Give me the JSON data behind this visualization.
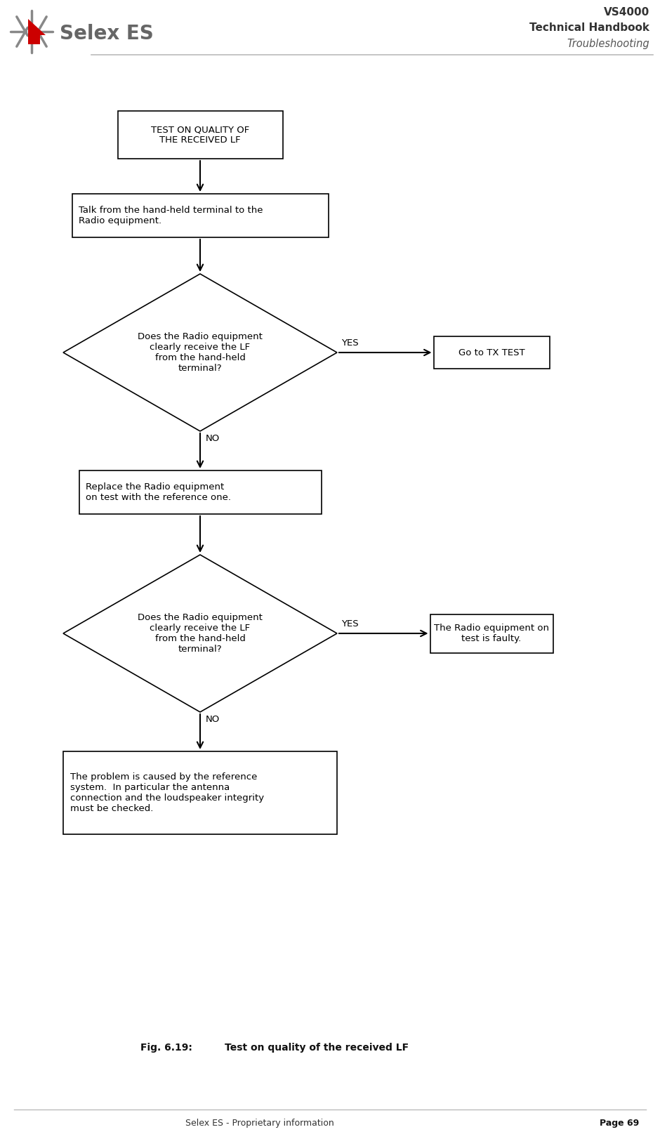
{
  "title_line1": "VS4000",
  "title_line2": "Technical Handbook",
  "title_line3": "Troubleshooting",
  "footer_left": "Selex ES - Proprietary information",
  "footer_right": "Page 69",
  "fig_caption_left": "Fig. 6.19:",
  "fig_caption_right": "Test on quality of the received LF",
  "bg_color": "#ffffff",
  "box_color": "#ffffff",
  "box_edge": "#000000",
  "arrow_color": "#000000",
  "text_color": "#000000",
  "header_line_color": "#bbbbbb",
  "footer_line_color": "#bbbbbb",
  "node_start": "TEST ON QUALITY OF\nTHE RECEIVED LF",
  "node_process1": "Talk from the hand-held terminal to the\nRadio equipment.",
  "node_diamond1": "Does the Radio equipment\nclearly receive the LF\nfrom the hand-held\nterminal?",
  "node_yes1": "Go to TX TEST",
  "node_process2": "Replace the Radio equipment\non test with the reference one.",
  "node_diamond2": "Does the Radio equipment\nclearly receive the LF\nfrom the hand-held\nterminal?",
  "node_yes2": "The Radio equipment on\ntest is faulty.",
  "node_end": "The problem is caused by the reference\nsystem.  In particular the antenna\nconnection and the loudspeaker integrity\nmust be checked.",
  "label_yes": "YES",
  "label_no": "NO",
  "logo_text": "Selex ES",
  "logo_color": "#666666",
  "logo_star_color": "#888888",
  "logo_arrow_color": "#cc0000"
}
